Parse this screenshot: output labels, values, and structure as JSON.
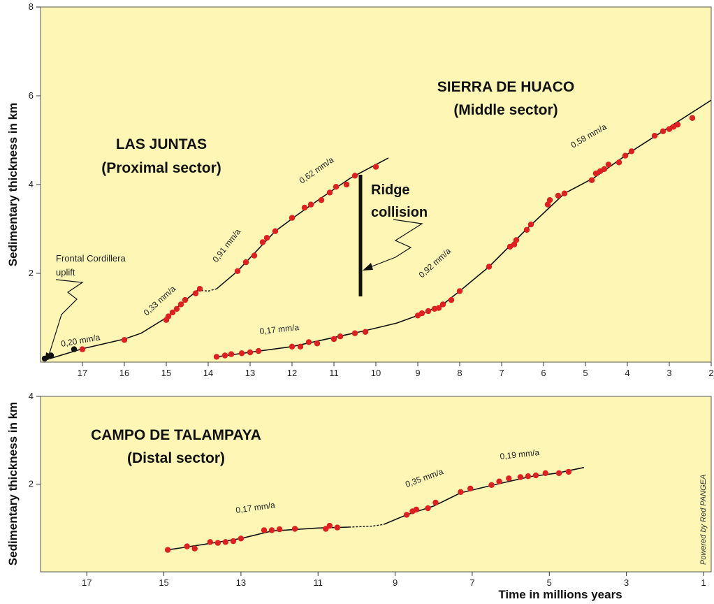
{
  "chart_data": [
    {
      "type": "scatter",
      "panel": "top",
      "xlabel": "",
      "ylabel": "Sedimentary thickness in km",
      "xlim": [
        18,
        2
      ],
      "ylim": [
        0,
        8
      ],
      "x_ticks": [
        17,
        16,
        15,
        14,
        13,
        12,
        11,
        10,
        9,
        8,
        7,
        6,
        5,
        4,
        3,
        2
      ],
      "y_ticks": [
        2,
        4,
        6,
        8
      ],
      "sectors": [
        {
          "name": "LAS JUNTAS",
          "subtitle": "(Proximal sector)"
        },
        {
          "name": "SIERRA DE HUACO",
          "subtitle": "(Middle sector)"
        }
      ],
      "series": [
        {
          "name": "LAS JUNTAS",
          "color": "#e02020",
          "points": [
            [
              17.0,
              0.29
            ],
            [
              16.0,
              0.5
            ],
            [
              15.0,
              0.95
            ],
            [
              14.95,
              1.03
            ],
            [
              14.85,
              1.12
            ],
            [
              14.75,
              1.2
            ],
            [
              14.65,
              1.3
            ],
            [
              14.55,
              1.4
            ],
            [
              14.3,
              1.55
            ],
            [
              14.2,
              1.65
            ],
            [
              13.3,
              2.05
            ],
            [
              13.1,
              2.25
            ],
            [
              12.9,
              2.4
            ],
            [
              12.7,
              2.7
            ],
            [
              12.6,
              2.8
            ],
            [
              12.4,
              2.95
            ],
            [
              12.0,
              3.25
            ],
            [
              11.7,
              3.48
            ],
            [
              11.55,
              3.55
            ],
            [
              11.3,
              3.65
            ],
            [
              11.1,
              3.82
            ],
            [
              10.95,
              3.95
            ],
            [
              10.7,
              4.0
            ],
            [
              10.5,
              4.2
            ],
            [
              10.0,
              4.4
            ]
          ],
          "black_points": [
            [
              17.9,
              0.08
            ],
            [
              17.75,
              0.15
            ],
            [
              17.2,
              0.29
            ]
          ]
        },
        {
          "name": "SIERRA DE HUACO",
          "color": "#e02020",
          "points": [
            [
              13.8,
              0.12
            ],
            [
              13.6,
              0.15
            ],
            [
              13.45,
              0.18
            ],
            [
              13.2,
              0.2
            ],
            [
              13.0,
              0.22
            ],
            [
              12.8,
              0.25
            ],
            [
              12.0,
              0.35
            ],
            [
              11.8,
              0.35
            ],
            [
              11.6,
              0.45
            ],
            [
              11.4,
              0.42
            ],
            [
              11.0,
              0.52
            ],
            [
              10.85,
              0.58
            ],
            [
              10.5,
              0.65
            ],
            [
              10.25,
              0.68
            ],
            [
              9.0,
              1.05
            ],
            [
              8.9,
              1.1
            ],
            [
              8.75,
              1.15
            ],
            [
              8.6,
              1.2
            ],
            [
              8.5,
              1.22
            ],
            [
              8.4,
              1.3
            ],
            [
              8.2,
              1.4
            ],
            [
              8.0,
              1.6
            ],
            [
              7.3,
              2.15
            ],
            [
              6.8,
              2.6
            ],
            [
              6.7,
              2.65
            ],
            [
              6.65,
              2.75
            ],
            [
              6.4,
              2.98
            ],
            [
              6.3,
              3.1
            ],
            [
              5.9,
              3.55
            ],
            [
              5.85,
              3.65
            ],
            [
              5.65,
              3.75
            ],
            [
              5.5,
              3.8
            ],
            [
              4.85,
              4.1
            ],
            [
              4.75,
              4.25
            ],
            [
              4.65,
              4.3
            ],
            [
              4.55,
              4.35
            ],
            [
              4.45,
              4.45
            ],
            [
              4.2,
              4.5
            ],
            [
              4.05,
              4.65
            ],
            [
              3.9,
              4.75
            ],
            [
              3.35,
              5.1
            ],
            [
              3.15,
              5.2
            ],
            [
              3.0,
              5.25
            ],
            [
              2.9,
              5.3
            ],
            [
              2.8,
              5.35
            ],
            [
              2.45,
              5.5
            ]
          ]
        }
      ],
      "rate_labels": [
        "0,20 mm/a",
        "0,33 mm/a",
        "0,91 mm/a",
        "0,62 mm/a",
        "0,17 mm/a",
        "0,92 mm/a",
        "0,58 mm/a"
      ],
      "annotations": {
        "frontal_line1": "Frontal Cordillera",
        "frontal_line2": "uplift",
        "ridge_line1": "Ridge",
        "ridge_line2": "collision"
      }
    },
    {
      "type": "scatter",
      "panel": "bottom",
      "xlabel": "Time in millions years",
      "ylabel": "Sedimentary thickness in km",
      "xlim": [
        18.2,
        0.8
      ],
      "ylim": [
        0,
        4
      ],
      "x_ticks": [
        17,
        15,
        13,
        11,
        9,
        7,
        5,
        3,
        1
      ],
      "y_ticks": [
        2,
        4
      ],
      "sectors": [
        {
          "name": "CAMPO DE TALAMPAYA",
          "subtitle": "(Distal sector)"
        }
      ],
      "series": [
        {
          "name": "CAMPO DE TALAMPAYA",
          "color": "#e02020",
          "points": [
            [
              14.9,
              0.5
            ],
            [
              14.4,
              0.58
            ],
            [
              14.2,
              0.53
            ],
            [
              13.8,
              0.68
            ],
            [
              13.6,
              0.66
            ],
            [
              13.4,
              0.68
            ],
            [
              13.2,
              0.7
            ],
            [
              13.0,
              0.76
            ],
            [
              12.4,
              0.95
            ],
            [
              12.2,
              0.95
            ],
            [
              12.0,
              0.97
            ],
            [
              11.6,
              0.98
            ],
            [
              10.8,
              0.98
            ],
            [
              10.7,
              1.05
            ],
            [
              10.5,
              1.01
            ],
            [
              8.7,
              1.3
            ],
            [
              8.55,
              1.38
            ],
            [
              8.45,
              1.42
            ],
            [
              8.15,
              1.45
            ],
            [
              7.95,
              1.58
            ],
            [
              7.3,
              1.82
            ],
            [
              7.05,
              1.9
            ],
            [
              6.5,
              1.98
            ],
            [
              6.3,
              2.06
            ],
            [
              6.05,
              2.13
            ],
            [
              5.75,
              2.16
            ],
            [
              5.55,
              2.18
            ],
            [
              5.35,
              2.2
            ],
            [
              5.1,
              2.25
            ],
            [
              4.75,
              2.25
            ],
            [
              4.5,
              2.28
            ]
          ]
        }
      ],
      "rate_labels": [
        "0,17 mm/a",
        "0,35 mm/a",
        "0,19 mm/a"
      ]
    }
  ],
  "credit": "Powered by Red PANGEA"
}
